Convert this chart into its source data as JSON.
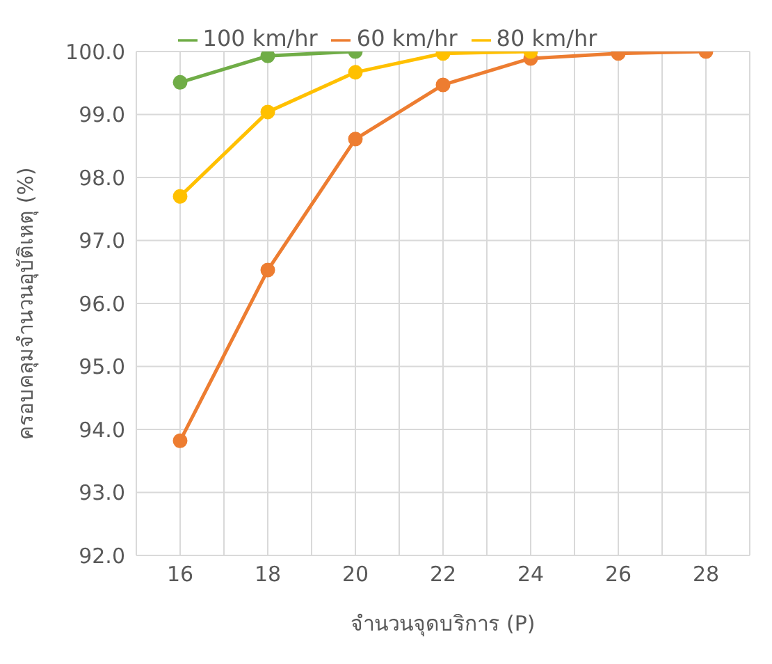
{
  "chart_data": {
    "type": "line",
    "xlabel": "จำนวนจุดบริการ (P)",
    "ylabel": "ครอบคลุมจำนวนอุบัติเหตุ (%)",
    "x": [
      16,
      18,
      20,
      22,
      24,
      26,
      28
    ],
    "series": [
      {
        "name": "60 km/hr",
        "color": "#ed7d31",
        "values": [
          93.82,
          96.53,
          98.61,
          99.47,
          99.89,
          99.97,
          100.0
        ]
      },
      {
        "name": "80 km/hr",
        "color": "#ffc000",
        "values": [
          97.7,
          99.04,
          99.67,
          99.97,
          100.0,
          null,
          null
        ]
      },
      {
        "name": "100 km/hr",
        "color": "#70ad47",
        "values": [
          99.51,
          99.93,
          100.0,
          null,
          null,
          null,
          null
        ]
      }
    ],
    "xlim": [
      15,
      29
    ],
    "xticks": [
      {
        "value": 15,
        "label": null
      },
      16,
      {
        "value": 17,
        "label": null
      },
      18,
      {
        "value": 19,
        "label": null
      },
      20,
      {
        "value": 21,
        "label": null
      },
      22,
      {
        "value": 23,
        "label": null
      },
      24,
      {
        "value": 25,
        "label": null
      },
      26,
      {
        "value": 27,
        "label": null
      },
      28,
      {
        "value": 29,
        "label": null
      }
    ],
    "ylim": [
      92,
      100
    ],
    "yticks": [
      {
        "value": 92,
        "label": "92.0"
      },
      {
        "value": 93,
        "label": "93.0"
      },
      {
        "value": 94,
        "label": "94.0"
      },
      {
        "value": 95,
        "label": "95.0"
      },
      {
        "value": 96,
        "label": "96.0"
      },
      {
        "value": 97,
        "label": "97.0"
      },
      {
        "value": 98,
        "label": "98.0"
      },
      {
        "value": 99,
        "label": "99.0"
      },
      {
        "value": 100,
        "label": "100.0"
      }
    ],
    "grid": true,
    "legend": "top",
    "marker": "circle",
    "line_style": "solid"
  }
}
